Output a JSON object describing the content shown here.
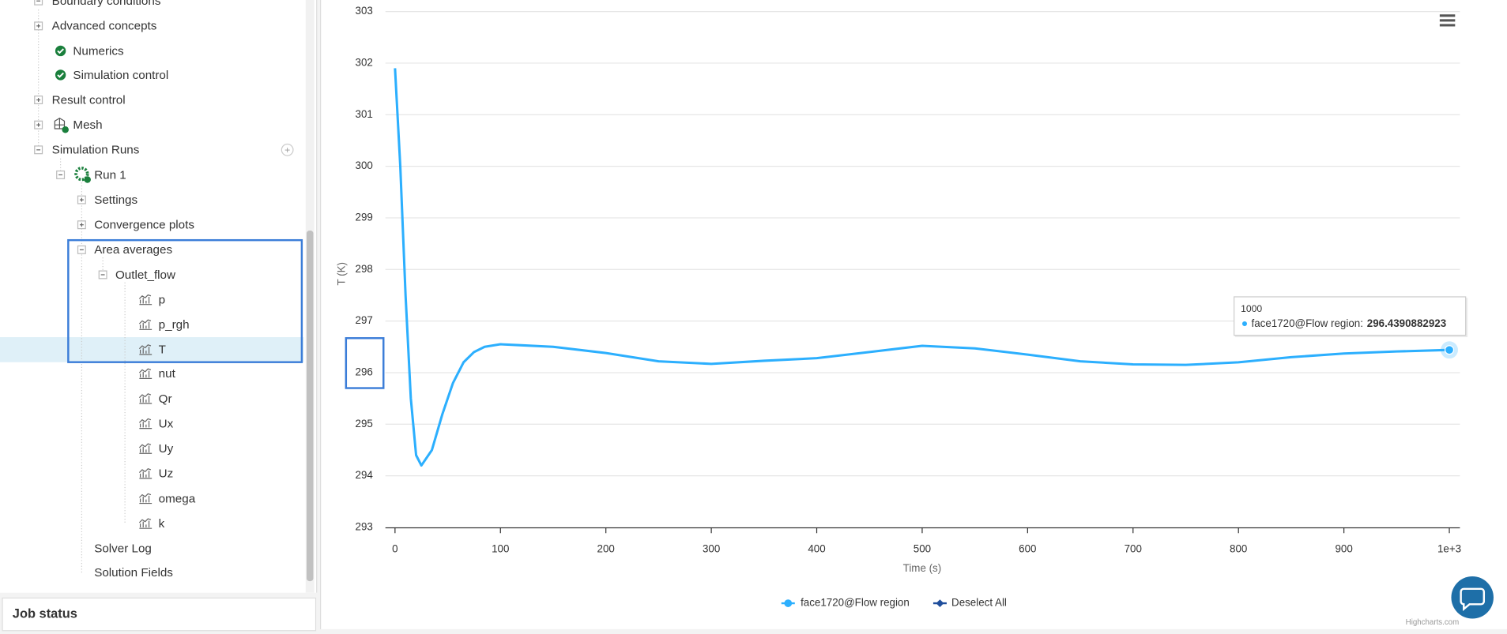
{
  "sidebar": {
    "items": [
      "Boundary conditions",
      "Advanced concepts",
      "Numerics",
      "Simulation control",
      "Result control",
      "Mesh",
      "Simulation Runs",
      "Run 1",
      "Settings",
      "Convergence plots",
      "Area averages",
      "Outlet_flow",
      "p",
      "p_rgh",
      "T",
      "nut",
      "Qr",
      "Ux",
      "Uy",
      "Uz",
      "omega",
      "k",
      "Solver Log",
      "Solution Fields"
    ],
    "job_status": "Job status"
  },
  "chart_data": {
    "type": "line",
    "x_label": "Time (s)",
    "y_label": "T (K)",
    "x": [
      0,
      5,
      10,
      15,
      20,
      25,
      35,
      45,
      55,
      65,
      75,
      85,
      100,
      120,
      150,
      200,
      250,
      300,
      350,
      400,
      450,
      500,
      550,
      600,
      650,
      700,
      750,
      800,
      850,
      900,
      950,
      1000
    ],
    "series": [
      {
        "name": "face1720@Flow region",
        "color": "#2caffe",
        "values": [
          301.9,
          300.0,
          297.5,
          295.5,
          294.4,
          294.2,
          294.5,
          295.2,
          295.8,
          296.2,
          296.4,
          296.5,
          296.55,
          296.53,
          296.5,
          296.38,
          296.22,
          296.17,
          296.23,
          296.28,
          296.4,
          296.52,
          296.47,
          296.35,
          296.22,
          296.16,
          296.15,
          296.2,
          296.3,
          296.37,
          296.41,
          296.44
        ]
      }
    ],
    "xlim": [
      0,
      1000
    ],
    "xticks": [
      0,
      100,
      200,
      300,
      400,
      500,
      600,
      700,
      800,
      900,
      {
        "value": 1000,
        "label": "1e+3"
      }
    ],
    "ylim": [
      293,
      303
    ],
    "yticks": [
      293,
      294,
      295,
      296,
      297,
      298,
      299,
      300,
      301,
      302,
      303
    ],
    "grid": true,
    "legend_extra": "Deselect All",
    "credits": "Highcharts.com",
    "tooltip": {
      "header": "1000",
      "series_label": "face1720@Flow region:",
      "value": "296.4390882923"
    }
  }
}
